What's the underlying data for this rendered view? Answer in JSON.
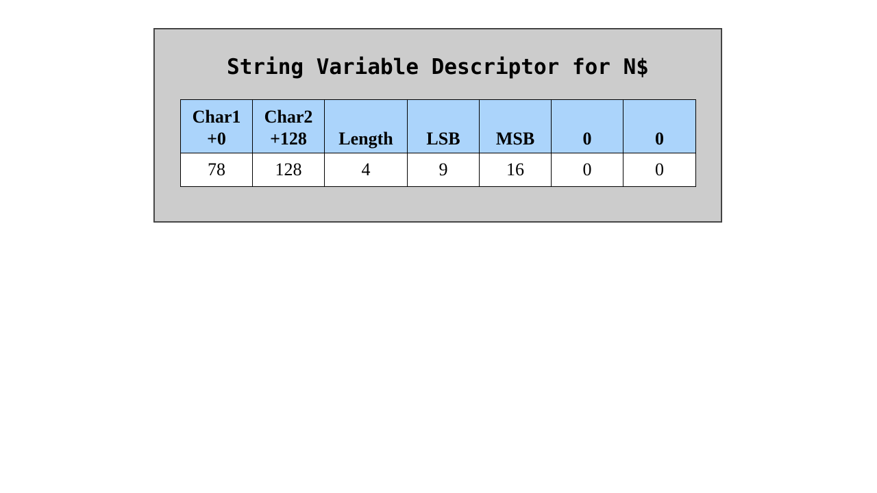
{
  "title": "String Variable Descriptor for N$",
  "table": {
    "headers": [
      {
        "line1": "Char1",
        "line2": "+0"
      },
      {
        "line1": "Char2",
        "line2": "+128"
      },
      {
        "line1": "",
        "line2": "Length"
      },
      {
        "line1": "",
        "line2": "LSB"
      },
      {
        "line1": "",
        "line2": "MSB"
      },
      {
        "line1": "",
        "line2": "0"
      },
      {
        "line1": "",
        "line2": "0"
      }
    ],
    "values": [
      "78",
      "128",
      "4",
      "9",
      "16",
      "0",
      "0"
    ]
  },
  "colors": {
    "panel_background": "#cccccc",
    "header_background": "#abd4fb",
    "cell_background": "#ffffff"
  }
}
